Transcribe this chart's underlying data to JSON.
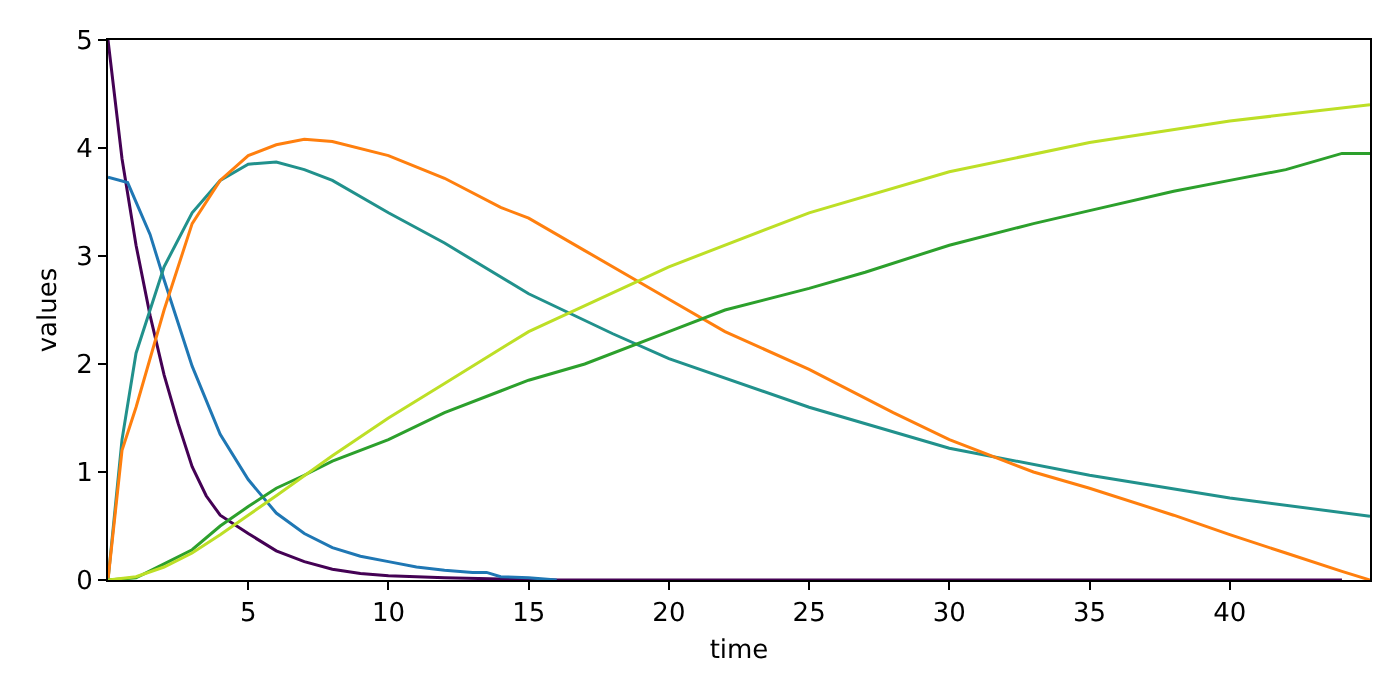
{
  "chart_data": {
    "type": "line",
    "xlabel": "time",
    "ylabel": "values",
    "xlim": [
      0,
      45
    ],
    "ylim": [
      0,
      5
    ],
    "xticks": [
      5,
      10,
      15,
      20,
      25,
      30,
      35,
      40
    ],
    "yticks": [
      0,
      1,
      2,
      3,
      4,
      5
    ],
    "marker": "none",
    "line_style": "solid",
    "series": [
      {
        "color": "#440154",
        "x": [
          0,
          0.5,
          1,
          1.5,
          2,
          2.5,
          3,
          3.5,
          4,
          5,
          6,
          7,
          8,
          9,
          10,
          12,
          14,
          16,
          20,
          30,
          44
        ],
        "values": [
          5,
          3.9,
          3.1,
          2.45,
          1.9,
          1.45,
          1.05,
          0.78,
          0.6,
          0.43,
          0.27,
          0.17,
          0.1,
          0.06,
          0.04,
          0.02,
          0.01,
          0,
          0,
          0,
          0
        ]
      },
      {
        "color": "#1f77b4",
        "x": [
          0,
          0.7,
          1.5,
          2,
          3,
          4,
          5,
          6,
          7,
          8,
          9,
          10,
          11,
          12,
          13,
          13.5,
          14,
          15,
          16
        ],
        "values": [
          3.73,
          3.68,
          3.2,
          2.78,
          1.98,
          1.35,
          0.93,
          0.62,
          0.43,
          0.3,
          0.22,
          0.17,
          0.12,
          0.09,
          0.07,
          0.07,
          0.03,
          0.02,
          0
        ]
      },
      {
        "color": "#21918c",
        "x": [
          0,
          0.5,
          1,
          2,
          3,
          4,
          5,
          6,
          7,
          8,
          10,
          12,
          15,
          18,
          20,
          25,
          30,
          35,
          40,
          45
        ],
        "values": [
          0,
          1.3,
          2.1,
          2.9,
          3.4,
          3.7,
          3.85,
          3.87,
          3.8,
          3.7,
          3.4,
          3.12,
          2.65,
          2.28,
          2.05,
          1.6,
          1.22,
          0.97,
          0.76,
          0.59
        ]
      },
      {
        "color": "#ff7f0e",
        "x": [
          0,
          0.5,
          1,
          2,
          3,
          4,
          5,
          6,
          7,
          8,
          10,
          12,
          14,
          15,
          17,
          20,
          22,
          25,
          28,
          30,
          33,
          35,
          38,
          40,
          42,
          44,
          45
        ],
        "values": [
          0,
          1.2,
          1.6,
          2.5,
          3.3,
          3.7,
          3.93,
          4.03,
          4.08,
          4.06,
          3.93,
          3.72,
          3.45,
          3.35,
          3.05,
          2.6,
          2.3,
          1.95,
          1.55,
          1.3,
          1.0,
          0.85,
          0.6,
          0.42,
          0.25,
          0.08,
          0
        ]
      },
      {
        "color": "#2ca02c",
        "x": [
          0,
          1,
          2,
          3,
          4,
          5,
          6,
          7,
          8,
          10,
          12,
          14,
          15,
          17,
          20,
          22,
          25,
          27,
          30,
          33,
          35,
          38,
          40,
          42,
          44,
          45
        ],
        "values": [
          0,
          0.02,
          0.15,
          0.28,
          0.5,
          0.68,
          0.85,
          0.97,
          1.1,
          1.3,
          1.55,
          1.75,
          1.85,
          2.0,
          2.3,
          2.5,
          2.7,
          2.85,
          3.1,
          3.3,
          3.42,
          3.6,
          3.7,
          3.8,
          3.95,
          3.95
        ]
      },
      {
        "color": "#bddf26",
        "x": [
          0,
          1,
          2,
          3,
          4,
          5,
          6,
          8,
          10,
          12,
          15,
          20,
          25,
          30,
          35,
          40,
          45
        ],
        "values": [
          0,
          0.03,
          0.12,
          0.25,
          0.42,
          0.6,
          0.78,
          1.15,
          1.5,
          1.82,
          2.3,
          2.9,
          3.4,
          3.78,
          4.05,
          4.25,
          4.4
        ]
      }
    ]
  }
}
